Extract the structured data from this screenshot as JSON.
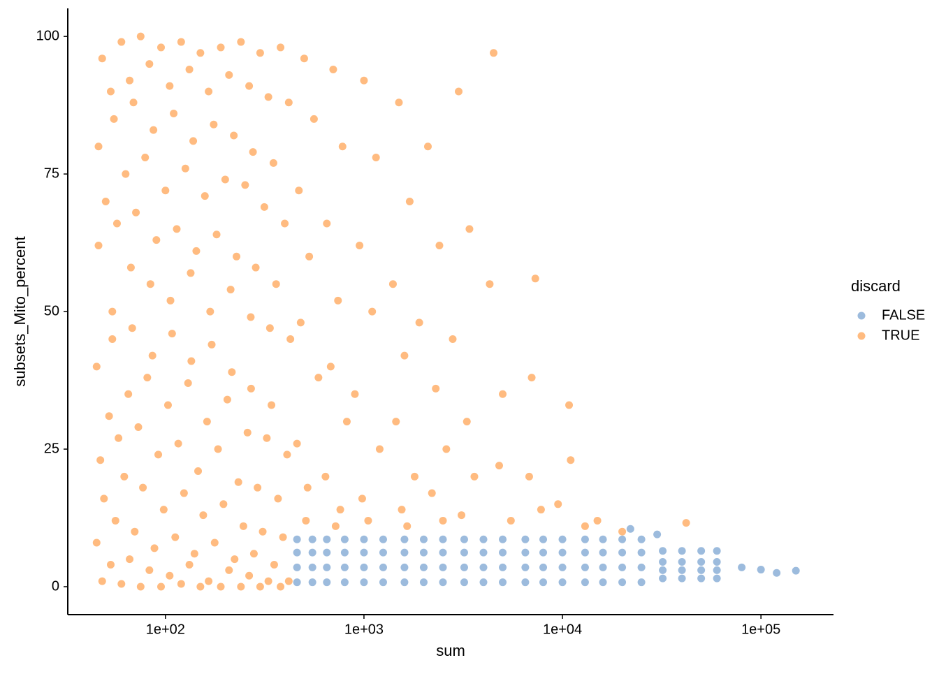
{
  "chart_data": {
    "type": "scatter",
    "x_label": "sum",
    "y_label": "subsets_Mito_percent",
    "legend_title": "discard",
    "x_scale": "log",
    "legend_position": "right",
    "xlim": [
      32.2,
      232000
    ],
    "ylim": [
      -5.08,
      105.1
    ],
    "xticks": [
      {
        "value": 100,
        "label": "1e+02"
      },
      {
        "value": 1000,
        "label": "1e+03"
      },
      {
        "value": 10000,
        "label": "1e+04"
      },
      {
        "value": 100000,
        "label": "1e+05"
      }
    ],
    "yticks": [
      0,
      25,
      50,
      75,
      100
    ],
    "series": [
      {
        "name": "TRUE",
        "color": "#ff9e4a",
        "x": [
          48,
          53,
          46,
          50,
          46,
          54,
          45,
          52,
          47,
          49,
          45,
          53,
          48,
          60,
          66,
          55,
          63,
          57,
          67,
          54,
          65,
          58,
          62,
          56,
          66,
          60,
          75,
          83,
          69,
          79,
          71,
          84,
          68,
          81,
          73,
          77,
          70,
          83,
          75,
          95,
          105,
          87,
          100,
          90,
          106,
          86,
          103,
          92,
          98,
          88,
          105,
          95,
          120,
          132,
          110,
          126,
          114,
          134,
          108,
          130,
          116,
          124,
          112,
          132,
          120,
          150,
          165,
          138,
          158,
          143,
          168,
          135,
          162,
          146,
          155,
          140,
          165,
          150,
          190,
          209,
          175,
          200,
          181,
          213,
          171,
          205,
          184,
          196,
          177,
          209,
          190,
          240,
          264,
          221,
          252,
          228,
          269,
          216,
          259,
          233,
          247,
          223,
          264,
          240,
          300,
          330,
          276,
          315,
          285,
          336,
          270,
          324,
          291,
          309,
          279,
          330,
          300,
          380,
          418,
          350,
          399,
          361,
          426,
          342,
          410,
          369,
          391,
          353,
          418,
          380,
          500,
          560,
          470,
          530,
          480,
          590,
          460,
          520,
          510,
          700,
          780,
          650,
          740,
          680,
          820,
          640,
          760,
          720,
          1000,
          1150,
          950,
          1100,
          900,
          1200,
          980,
          1050,
          1500,
          1700,
          1400,
          1600,
          1450,
          1800,
          1550,
          1650,
          2100,
          2400,
          1900,
          2300,
          2600,
          2200,
          2500,
          3000,
          3400,
          2800,
          3300,
          3600,
          3100,
          4500,
          4300,
          5000,
          4800,
          5500,
          7300,
          7000,
          6800,
          7800,
          10800,
          11000,
          9500,
          13000,
          15000,
          20000,
          42000
        ],
        "values": [
          96,
          90,
          80,
          70,
          62,
          50,
          40,
          31,
          23,
          16,
          8,
          4,
          1,
          99,
          92,
          85,
          75,
          66,
          58,
          45,
          35,
          27,
          20,
          12,
          5,
          0.5,
          100,
          95,
          88,
          78,
          68,
          55,
          47,
          38,
          29,
          18,
          10,
          3,
          0,
          98,
          91,
          83,
          72,
          63,
          52,
          42,
          33,
          24,
          14,
          7,
          2,
          0,
          99,
          94,
          86,
          76,
          65,
          57,
          46,
          37,
          26,
          17,
          9,
          4,
          0.5,
          97,
          90,
          81,
          71,
          61,
          50,
          41,
          30,
          21,
          13,
          6,
          1,
          0,
          98,
          93,
          84,
          74,
          64,
          54,
          44,
          34,
          25,
          15,
          8,
          3,
          0,
          99,
          91,
          82,
          73,
          60,
          49,
          39,
          28,
          19,
          11,
          5,
          2,
          0,
          97,
          89,
          79,
          69,
          58,
          47,
          36,
          27,
          18,
          10,
          6,
          1,
          0,
          98,
          88,
          77,
          66,
          55,
          45,
          33,
          24,
          16,
          9,
          4,
          1,
          0,
          96,
          85,
          72,
          60,
          48,
          38,
          26,
          18,
          12,
          94,
          80,
          66,
          52,
          40,
          30,
          20,
          14,
          11,
          92,
          78,
          62,
          50,
          35,
          25,
          16,
          12,
          88,
          70,
          55,
          42,
          30,
          20,
          14,
          11,
          80,
          62,
          48,
          36,
          25,
          17,
          12,
          90,
          65,
          45,
          30,
          20,
          13,
          97,
          55,
          35,
          22,
          12,
          56,
          38,
          20,
          14,
          33,
          23,
          15,
          11,
          12,
          10,
          11.6
        ]
      },
      {
        "name": "FALSE",
        "color": "#729ece",
        "x": [
          460,
          460,
          460,
          460,
          550,
          550,
          550,
          550,
          650,
          650,
          650,
          650,
          800,
          800,
          800,
          800,
          1000,
          1000,
          1000,
          1000,
          1250,
          1250,
          1250,
          1250,
          1600,
          1600,
          1600,
          1600,
          2000,
          2000,
          2000,
          2000,
          2500,
          2500,
          2500,
          2500,
          3200,
          3200,
          3200,
          3200,
          4000,
          4000,
          4000,
          4000,
          5000,
          5000,
          5000,
          5000,
          6500,
          6500,
          6500,
          6500,
          8000,
          8000,
          8000,
          8000,
          10000,
          10000,
          10000,
          10000,
          13000,
          13000,
          13000,
          13000,
          16000,
          16000,
          16000,
          16000,
          20000,
          20000,
          20000,
          20000,
          25000,
          25000,
          25000,
          25000,
          32000,
          32000,
          32000,
          32000,
          40000,
          40000,
          40000,
          40000,
          50000,
          50000,
          50000,
          50000,
          60000,
          60000,
          60000,
          60000,
          80000,
          100000,
          120000,
          150000,
          22000,
          30000
        ],
        "values": [
          0.8,
          3.5,
          6.2,
          8.6,
          0.8,
          3.5,
          6.2,
          8.6,
          0.8,
          3.5,
          6.2,
          8.6,
          0.8,
          3.5,
          6.2,
          8.6,
          0.8,
          3.5,
          6.2,
          8.6,
          0.8,
          3.5,
          6.2,
          8.6,
          0.8,
          3.5,
          6.2,
          8.6,
          0.8,
          3.5,
          6.2,
          8.6,
          0.8,
          3.5,
          6.2,
          8.6,
          0.8,
          3.5,
          6.2,
          8.6,
          0.8,
          3.5,
          6.2,
          8.6,
          0.8,
          3.5,
          6.2,
          8.6,
          0.8,
          3.5,
          6.2,
          8.6,
          0.8,
          3.5,
          6.2,
          8.6,
          0.8,
          3.5,
          6.2,
          8.6,
          0.8,
          3.5,
          6.2,
          8.6,
          0.8,
          3.5,
          6.2,
          8.6,
          0.8,
          3.5,
          6.2,
          8.6,
          0.8,
          3.5,
          6.2,
          8.6,
          1.5,
          3,
          4.5,
          6.5,
          1.5,
          3,
          4.5,
          6.5,
          1.5,
          3,
          4.5,
          6.5,
          1.5,
          3,
          4.5,
          6.5,
          3.5,
          3.1,
          2.5,
          2.9,
          10.5,
          9.5
        ]
      }
    ]
  }
}
